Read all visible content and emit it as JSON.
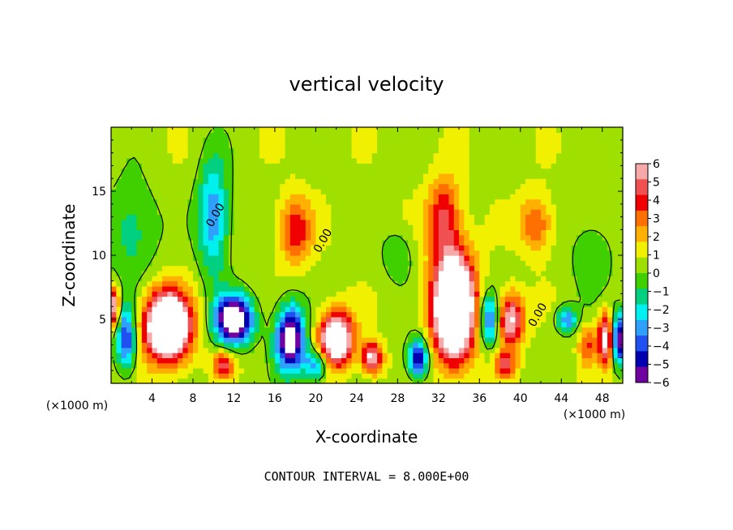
{
  "chart_data": {
    "type": "heatmap",
    "title": "vertical velocity",
    "xlabel": "X-coordinate",
    "ylabel": "Z-coordinate",
    "x_unit_label": "(×1000 m)",
    "x_unit_label_right": "(×1000 m)",
    "xlim": [
      0,
      50
    ],
    "ylim": [
      0,
      20
    ],
    "x_ticks": [
      "4",
      "8",
      "12",
      "16",
      "20",
      "24",
      "28",
      "32",
      "36",
      "40",
      "44",
      "48"
    ],
    "y_ticks": [
      "5",
      "10",
      "15"
    ],
    "colorbar": {
      "range": [
        -6,
        6
      ],
      "labels": [
        "6",
        "5",
        "4",
        "3",
        "2",
        "1",
        "0",
        "−1",
        "−2",
        "−3",
        "−4",
        "−5",
        "−6"
      ],
      "colors": [
        "#f7a8a8",
        "#f05050",
        "#f00000",
        "#ff7000",
        "#ffb000",
        "#f0f000",
        "#a0e000",
        "#40d000",
        "#00d080",
        "#00f0f0",
        "#30a0ff",
        "#2050f0",
        "#0000b0",
        "#7000a0"
      ]
    },
    "contour_label": "0.00",
    "note": "CONTOUR INTERVAL = 8.000E+00",
    "features": [
      {
        "type": "updraft",
        "x": 5.5,
        "z": 4.5,
        "sx": 2.2,
        "sz": 2.6,
        "w": 11
      },
      {
        "type": "updraft",
        "x": 33.5,
        "z": 6.0,
        "sx": 2.0,
        "sz": 4.0,
        "w": 12
      },
      {
        "type": "updraft",
        "x": 22,
        "z": 3.5,
        "sx": 1.6,
        "sz": 2.0,
        "w": 9
      },
      {
        "type": "updraft",
        "x": 25.5,
        "z": 2.0,
        "sx": 1.0,
        "sz": 1.2,
        "w": 6
      },
      {
        "type": "updraft",
        "x": 39,
        "z": 5.0,
        "sx": 1.3,
        "sz": 2.0,
        "w": 6
      },
      {
        "type": "updraft",
        "x": 18,
        "z": 12,
        "sx": 1.6,
        "sz": 2.6,
        "w": 3.5
      },
      {
        "type": "updraft",
        "x": 41.5,
        "z": 12.5,
        "sx": 1.6,
        "sz": 2.2,
        "w": 3
      },
      {
        "type": "updraft",
        "x": 32.5,
        "z": 13,
        "sx": 1.6,
        "sz": 3.0,
        "w": 4
      },
      {
        "type": "updraft",
        "x": 11,
        "z": 1.5,
        "sx": 1.0,
        "sz": 1.0,
        "w": 4
      },
      {
        "type": "updraft",
        "x": 38.5,
        "z": 1.5,
        "sx": 1.0,
        "sz": 1.0,
        "w": 4
      },
      {
        "type": "updraft",
        "x": 48.5,
        "z": 3.5,
        "sx": 0.9,
        "sz": 2.0,
        "w": 7
      },
      {
        "type": "updraft",
        "x": 0.2,
        "z": 6.0,
        "sx": 0.6,
        "sz": 1.5,
        "w": 6
      },
      {
        "type": "updraft",
        "x": 46.5,
        "z": 3.0,
        "sx": 0.8,
        "sz": 1.5,
        "w": 3
      },
      {
        "type": "downdraft",
        "x": 10,
        "z": 13,
        "sx": 1.5,
        "sz": 4.5,
        "w": -4
      },
      {
        "type": "downdraft",
        "x": 12,
        "z": 5.0,
        "sx": 1.8,
        "sz": 1.8,
        "w": -9
      },
      {
        "type": "downdraft",
        "x": 17.5,
        "z": 3.5,
        "sx": 1.4,
        "sz": 2.5,
        "w": -8
      },
      {
        "type": "downdraft",
        "x": 30,
        "z": 2.0,
        "sx": 1.0,
        "sz": 1.5,
        "w": -6
      },
      {
        "type": "downdraft",
        "x": 37,
        "z": 5.0,
        "sx": 1.0,
        "sz": 2.0,
        "w": -5
      },
      {
        "type": "downdraft",
        "x": 49.5,
        "z": 3.5,
        "sx": 0.8,
        "sz": 2.0,
        "w": -8
      },
      {
        "type": "downdraft",
        "x": 1.5,
        "z": 3.5,
        "sx": 1.0,
        "sz": 2.5,
        "w": -5
      },
      {
        "type": "downdraft",
        "x": 44.5,
        "z": 5.0,
        "sx": 1.0,
        "sz": 1.0,
        "w": -4
      },
      {
        "type": "downdraft",
        "x": 2.0,
        "z": 12,
        "sx": 2.5,
        "sz": 4.0,
        "w": -2
      },
      {
        "type": "downdraft",
        "x": 28,
        "z": 10,
        "sx": 1.5,
        "sz": 2.0,
        "w": -1.5
      },
      {
        "type": "downdraft",
        "x": 47,
        "z": 10,
        "sx": 2.0,
        "sz": 3.0,
        "w": -1.5
      },
      {
        "type": "downdraft",
        "x": 20,
        "z": 1.5,
        "sx": 1.2,
        "sz": 1.2,
        "w": -4
      }
    ]
  }
}
